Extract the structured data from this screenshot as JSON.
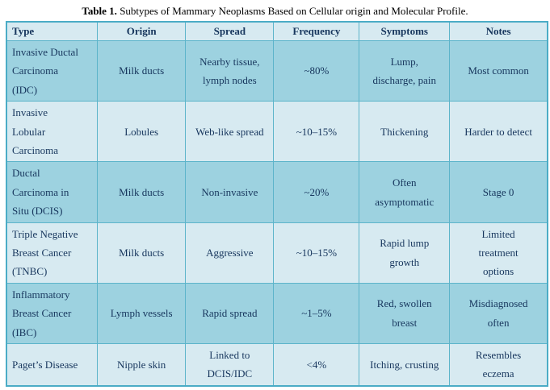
{
  "caption": {
    "label": "Table 1.",
    "text": " Subtypes of Mammary Neoplasms Based on Cellular origin and Molecular Profile."
  },
  "table": {
    "headers": [
      "Type",
      "Origin",
      "Spread",
      "Frequency",
      "Symptoms",
      "Notes"
    ],
    "rows": [
      {
        "cells": [
          "Invasive Ductal\nCarcinoma\n(IDC)",
          "Milk ducts",
          "Nearby tissue,\nlymph nodes",
          "~80%",
          "Lump,\ndischarge, pain",
          "Most common"
        ]
      },
      {
        "cells": [
          "Invasive\nLobular\nCarcinoma",
          "Lobules",
          "Web-like spread",
          "~10–15%",
          "Thickening",
          "Harder to detect"
        ]
      },
      {
        "cells": [
          "Ductal\nCarcinoma in\nSitu (DCIS)",
          "Milk ducts",
          "Non-invasive",
          "~20%",
          "Often\nasymptomatic",
          "Stage 0"
        ]
      },
      {
        "cells": [
          "Triple Negative\nBreast Cancer\n(TNBC)",
          "Milk ducts",
          "Aggressive",
          "~10–15%",
          "Rapid lump\ngrowth",
          "Limited\ntreatment\noptions"
        ]
      },
      {
        "cells": [
          "Inflammatory\nBreast Cancer\n(IBC)",
          "Lymph vessels",
          "Rapid spread",
          "~1–5%",
          "Red, swollen\nbreast",
          "Misdiagnosed\noften"
        ]
      },
      {
        "cells": [
          "Paget’s Disease",
          "Nipple skin",
          "Linked to\nDCIS/IDC",
          "<4%",
          "Itching, crusting",
          "Resembles\neczema"
        ]
      }
    ]
  },
  "colors": {
    "row_dark": "#9DD2E0",
    "row_light": "#D7EAF1",
    "border": "#5CB4CA",
    "border_outer": "#4BACC6",
    "text": "#17365D",
    "title_text": "#000000",
    "page_bg": "#FFFFFF"
  }
}
